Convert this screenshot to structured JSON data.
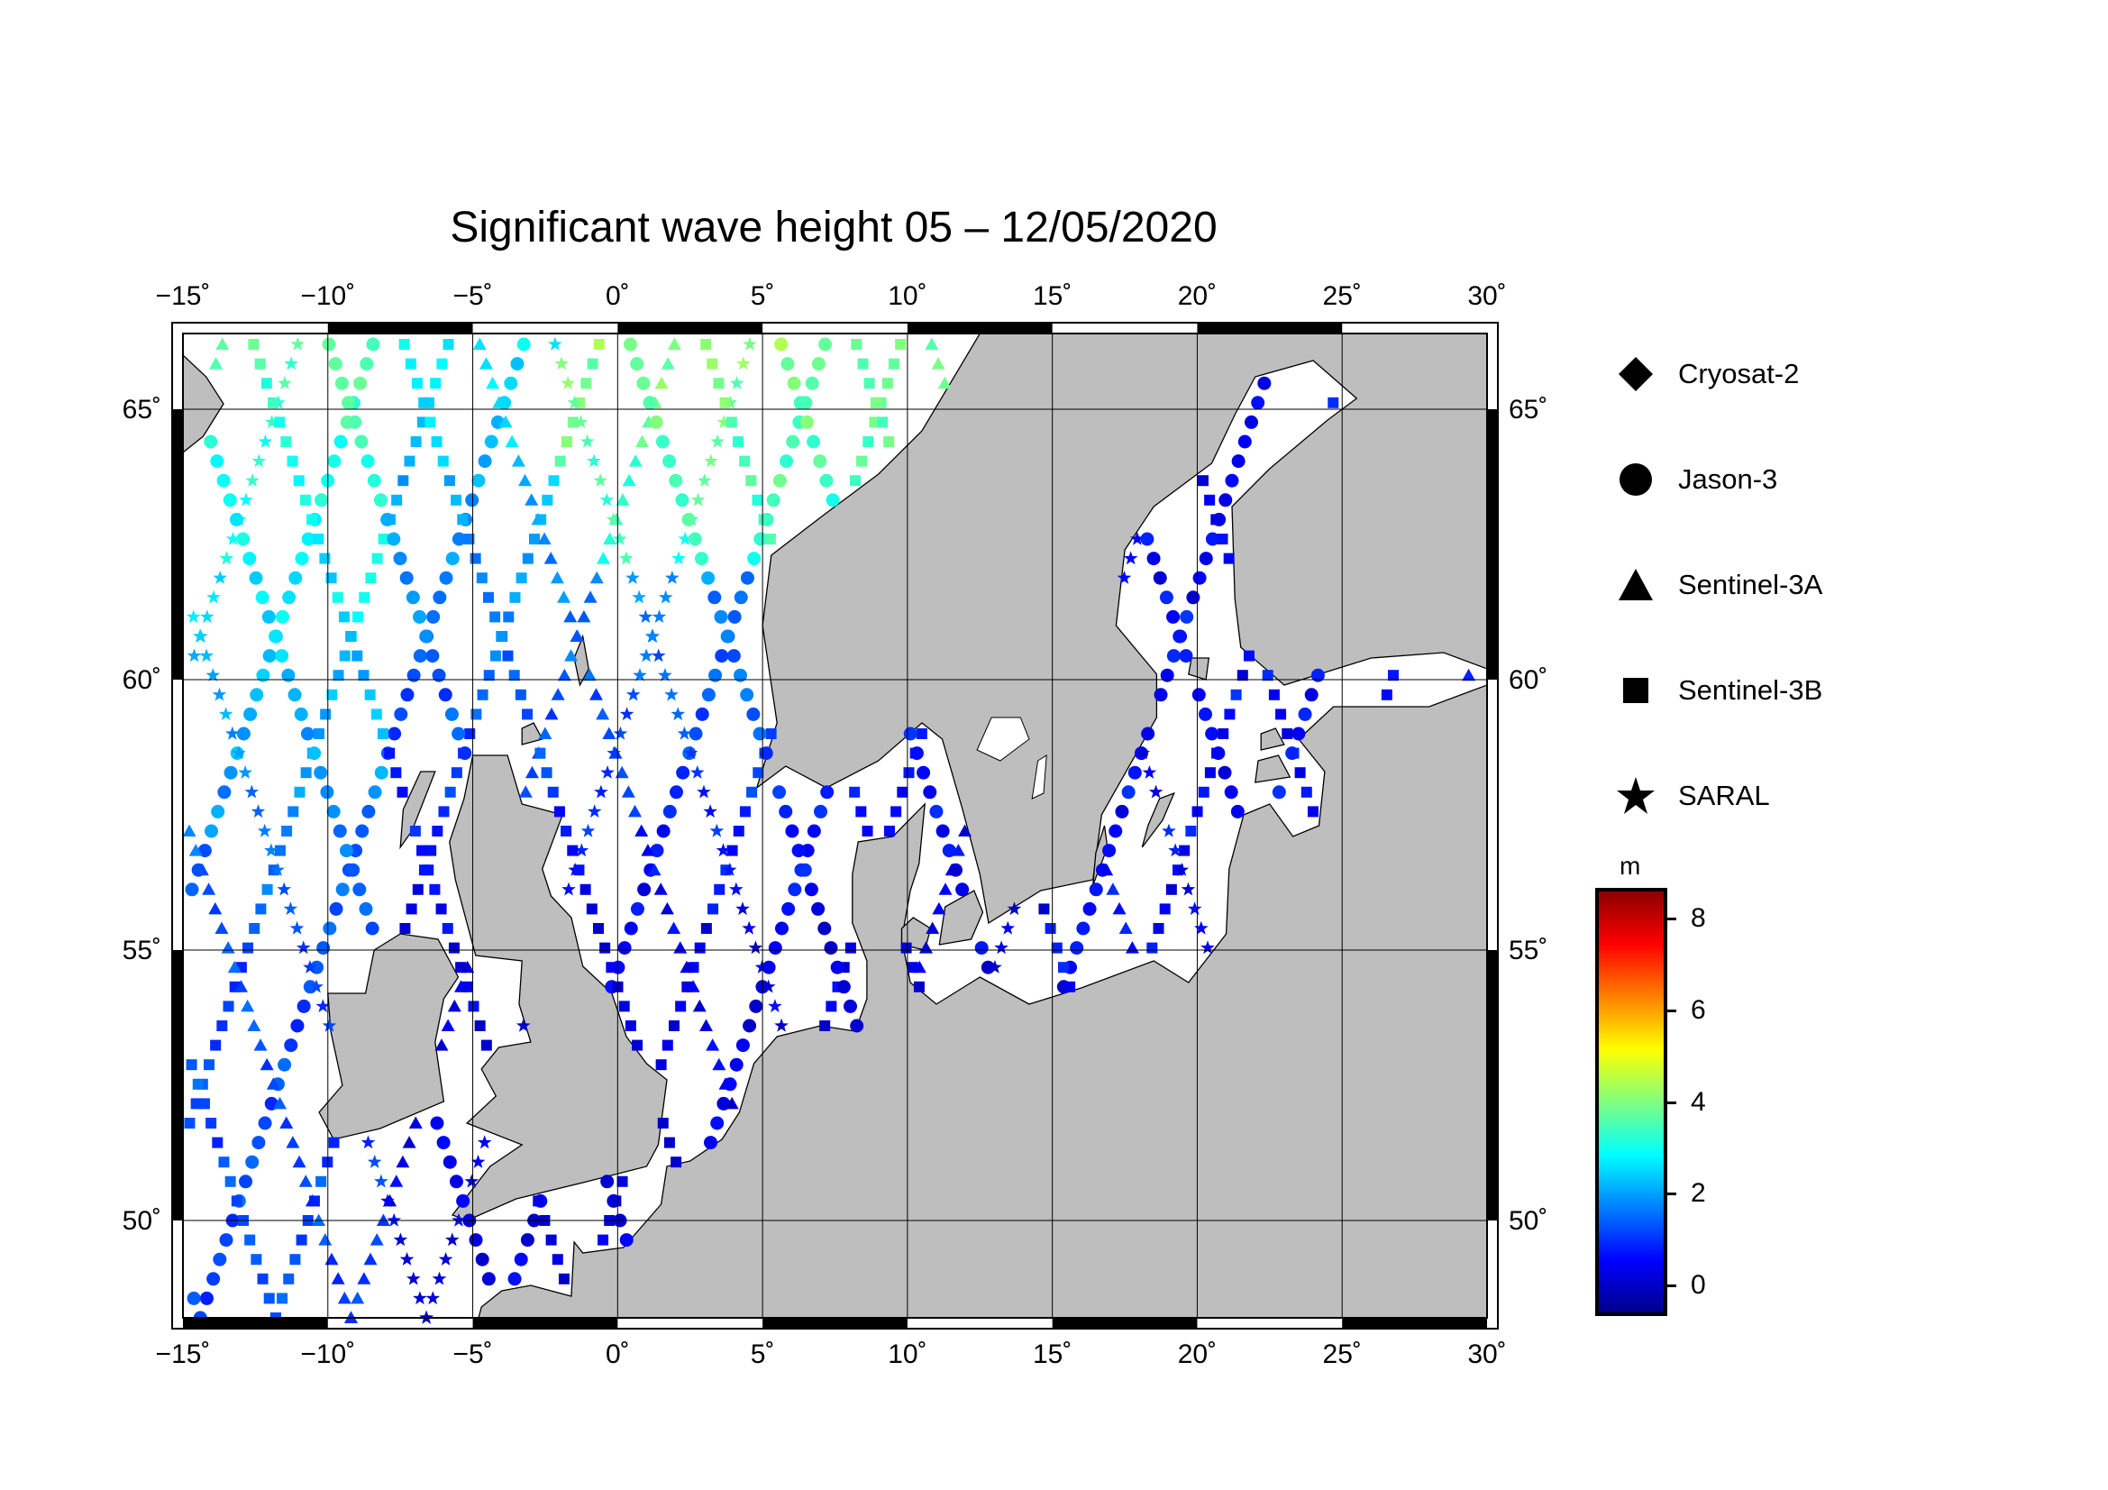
{
  "title": "Significant wave height 05 – 12/05/2020",
  "map": {
    "lon_ticks": [
      "−15˚",
      "−10˚",
      "−5˚",
      "0˚",
      "5˚",
      "10˚",
      "15˚",
      "20˚",
      "25˚",
      "30˚"
    ],
    "lat_ticks": [
      "65˚",
      "60˚",
      "55˚",
      "50˚"
    ],
    "lon_range": [
      -15,
      30
    ],
    "lat_range": [
      48.2,
      66.4
    ],
    "land_color": "#bebebe",
    "sea_color": "#ffffff"
  },
  "legend": {
    "items": [
      {
        "label": "Cryosat-2",
        "icon": "diamond-icon"
      },
      {
        "label": "Jason-3",
        "icon": "circle-icon"
      },
      {
        "label": "Sentinel-3A",
        "icon": "triangle-icon"
      },
      {
        "label": "Sentinel-3B",
        "icon": "square-icon"
      },
      {
        "label": "SARAL",
        "icon": "star-icon"
      }
    ]
  },
  "colorbar": {
    "unit": "m",
    "ticks": [
      "8",
      "6",
      "4",
      "2",
      "0"
    ],
    "range": [
      -0.6,
      8.6
    ],
    "colors": [
      "#00008b",
      "#0000ff",
      "#0080ff",
      "#00ffff",
      "#80ff80",
      "#ffff00",
      "#ff8000",
      "#ff0000",
      "#8b0000"
    ]
  }
}
